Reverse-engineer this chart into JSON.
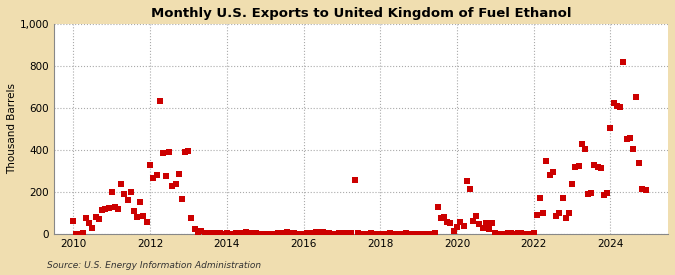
{
  "title": "Monthly U.S. Exports to United Kingdom of Fuel Ethanol",
  "ylabel": "Thousand Barrels",
  "source": "Source: U.S. Energy Information Administration",
  "background_color": "#f0deb0",
  "plot_bg_color": "#ffffff",
  "marker_color": "#cc0000",
  "marker": "s",
  "marker_size": 4,
  "ylim": [
    0,
    1000
  ],
  "yticks": [
    0,
    200,
    400,
    600,
    800,
    1000
  ],
  "ytick_labels": [
    "0",
    "200",
    "400",
    "600",
    "800",
    "1,000"
  ],
  "xlim_start": 2009.5,
  "xlim_end": 2025.5,
  "xtick_positions": [
    2010,
    2012,
    2014,
    2016,
    2018,
    2020,
    2022,
    2024
  ],
  "data": [
    [
      2010.0,
      60
    ],
    [
      2010.08,
      2
    ],
    [
      2010.17,
      0
    ],
    [
      2010.25,
      5
    ],
    [
      2010.33,
      75
    ],
    [
      2010.42,
      50
    ],
    [
      2010.5,
      30
    ],
    [
      2010.58,
      80
    ],
    [
      2010.67,
      70
    ],
    [
      2010.75,
      115
    ],
    [
      2010.83,
      120
    ],
    [
      2010.92,
      125
    ],
    [
      2011.0,
      200
    ],
    [
      2011.08,
      130
    ],
    [
      2011.17,
      120
    ],
    [
      2011.25,
      240
    ],
    [
      2011.33,
      190
    ],
    [
      2011.42,
      160
    ],
    [
      2011.5,
      200
    ],
    [
      2011.58,
      110
    ],
    [
      2011.67,
      80
    ],
    [
      2011.75,
      150
    ],
    [
      2011.83,
      85
    ],
    [
      2011.92,
      55
    ],
    [
      2012.0,
      330
    ],
    [
      2012.08,
      265
    ],
    [
      2012.17,
      280
    ],
    [
      2012.25,
      635
    ],
    [
      2012.33,
      385
    ],
    [
      2012.42,
      275
    ],
    [
      2012.5,
      390
    ],
    [
      2012.58,
      230
    ],
    [
      2012.67,
      240
    ],
    [
      2012.75,
      285
    ],
    [
      2012.83,
      165
    ],
    [
      2012.92,
      390
    ],
    [
      2013.0,
      395
    ],
    [
      2013.08,
      75
    ],
    [
      2013.17,
      25
    ],
    [
      2013.25,
      10
    ],
    [
      2013.33,
      15
    ],
    [
      2013.42,
      5
    ],
    [
      2013.5,
      5
    ],
    [
      2013.58,
      3
    ],
    [
      2013.67,
      5
    ],
    [
      2013.75,
      5
    ],
    [
      2013.83,
      3
    ],
    [
      2013.92,
      2
    ],
    [
      2014.0,
      3
    ],
    [
      2014.08,
      2
    ],
    [
      2014.17,
      1
    ],
    [
      2014.25,
      3
    ],
    [
      2014.33,
      5
    ],
    [
      2014.42,
      5
    ],
    [
      2014.5,
      10
    ],
    [
      2014.58,
      5
    ],
    [
      2014.67,
      3
    ],
    [
      2014.75,
      3
    ],
    [
      2014.83,
      2
    ],
    [
      2014.92,
      1
    ],
    [
      2015.0,
      1
    ],
    [
      2015.08,
      1
    ],
    [
      2015.17,
      2
    ],
    [
      2015.25,
      2
    ],
    [
      2015.33,
      3
    ],
    [
      2015.42,
      5
    ],
    [
      2015.5,
      5
    ],
    [
      2015.58,
      8
    ],
    [
      2015.67,
      5
    ],
    [
      2015.75,
      3
    ],
    [
      2015.83,
      2
    ],
    [
      2015.92,
      1
    ],
    [
      2016.0,
      2
    ],
    [
      2016.08,
      3
    ],
    [
      2016.17,
      5
    ],
    [
      2016.25,
      3
    ],
    [
      2016.33,
      10
    ],
    [
      2016.42,
      10
    ],
    [
      2016.5,
      8
    ],
    [
      2016.58,
      5
    ],
    [
      2016.67,
      3
    ],
    [
      2016.75,
      2
    ],
    [
      2016.83,
      1
    ],
    [
      2016.92,
      3
    ],
    [
      2017.0,
      5
    ],
    [
      2017.08,
      3
    ],
    [
      2017.17,
      2
    ],
    [
      2017.25,
      5
    ],
    [
      2017.33,
      255
    ],
    [
      2017.42,
      3
    ],
    [
      2017.5,
      2
    ],
    [
      2017.58,
      2
    ],
    [
      2017.67,
      1
    ],
    [
      2017.75,
      3
    ],
    [
      2017.83,
      2
    ],
    [
      2017.92,
      1
    ],
    [
      2018.0,
      2
    ],
    [
      2018.08,
      1
    ],
    [
      2018.17,
      2
    ],
    [
      2018.25,
      3
    ],
    [
      2018.33,
      2
    ],
    [
      2018.42,
      1
    ],
    [
      2018.5,
      2
    ],
    [
      2018.58,
      2
    ],
    [
      2018.67,
      3
    ],
    [
      2018.75,
      1
    ],
    [
      2018.83,
      2
    ],
    [
      2018.92,
      1
    ],
    [
      2019.0,
      1
    ],
    [
      2019.08,
      2
    ],
    [
      2019.17,
      2
    ],
    [
      2019.25,
      1
    ],
    [
      2019.33,
      2
    ],
    [
      2019.42,
      5
    ],
    [
      2019.5,
      130
    ],
    [
      2019.58,
      75
    ],
    [
      2019.67,
      80
    ],
    [
      2019.75,
      55
    ],
    [
      2019.83,
      50
    ],
    [
      2019.92,
      15
    ],
    [
      2020.0,
      35
    ],
    [
      2020.08,
      55
    ],
    [
      2020.17,
      40
    ],
    [
      2020.25,
      250
    ],
    [
      2020.33,
      215
    ],
    [
      2020.42,
      60
    ],
    [
      2020.5,
      85
    ],
    [
      2020.58,
      45
    ],
    [
      2020.67,
      30
    ],
    [
      2020.75,
      50
    ],
    [
      2020.83,
      25
    ],
    [
      2020.92,
      50
    ],
    [
      2021.0,
      3
    ],
    [
      2021.08,
      2
    ],
    [
      2021.17,
      2
    ],
    [
      2021.25,
      1
    ],
    [
      2021.33,
      5
    ],
    [
      2021.42,
      3
    ],
    [
      2021.5,
      2
    ],
    [
      2021.58,
      5
    ],
    [
      2021.67,
      3
    ],
    [
      2021.75,
      2
    ],
    [
      2021.83,
      1
    ],
    [
      2021.92,
      1
    ],
    [
      2022.0,
      3
    ],
    [
      2022.08,
      90
    ],
    [
      2022.17,
      170
    ],
    [
      2022.25,
      100
    ],
    [
      2022.33,
      345
    ],
    [
      2022.42,
      280
    ],
    [
      2022.5,
      295
    ],
    [
      2022.58,
      85
    ],
    [
      2022.67,
      100
    ],
    [
      2022.75,
      170
    ],
    [
      2022.83,
      75
    ],
    [
      2022.92,
      100
    ],
    [
      2023.0,
      240
    ],
    [
      2023.08,
      320
    ],
    [
      2023.17,
      325
    ],
    [
      2023.25,
      430
    ],
    [
      2023.33,
      405
    ],
    [
      2023.42,
      190
    ],
    [
      2023.5,
      195
    ],
    [
      2023.58,
      330
    ],
    [
      2023.67,
      320
    ],
    [
      2023.75,
      315
    ],
    [
      2023.83,
      185
    ],
    [
      2023.92,
      195
    ],
    [
      2024.0,
      505
    ],
    [
      2024.08,
      625
    ],
    [
      2024.17,
      610
    ],
    [
      2024.25,
      605
    ],
    [
      2024.33,
      820
    ],
    [
      2024.42,
      450
    ],
    [
      2024.5,
      455
    ],
    [
      2024.58,
      405
    ],
    [
      2024.67,
      650
    ],
    [
      2024.75,
      340
    ],
    [
      2024.83,
      215
    ],
    [
      2024.92,
      210
    ]
  ]
}
